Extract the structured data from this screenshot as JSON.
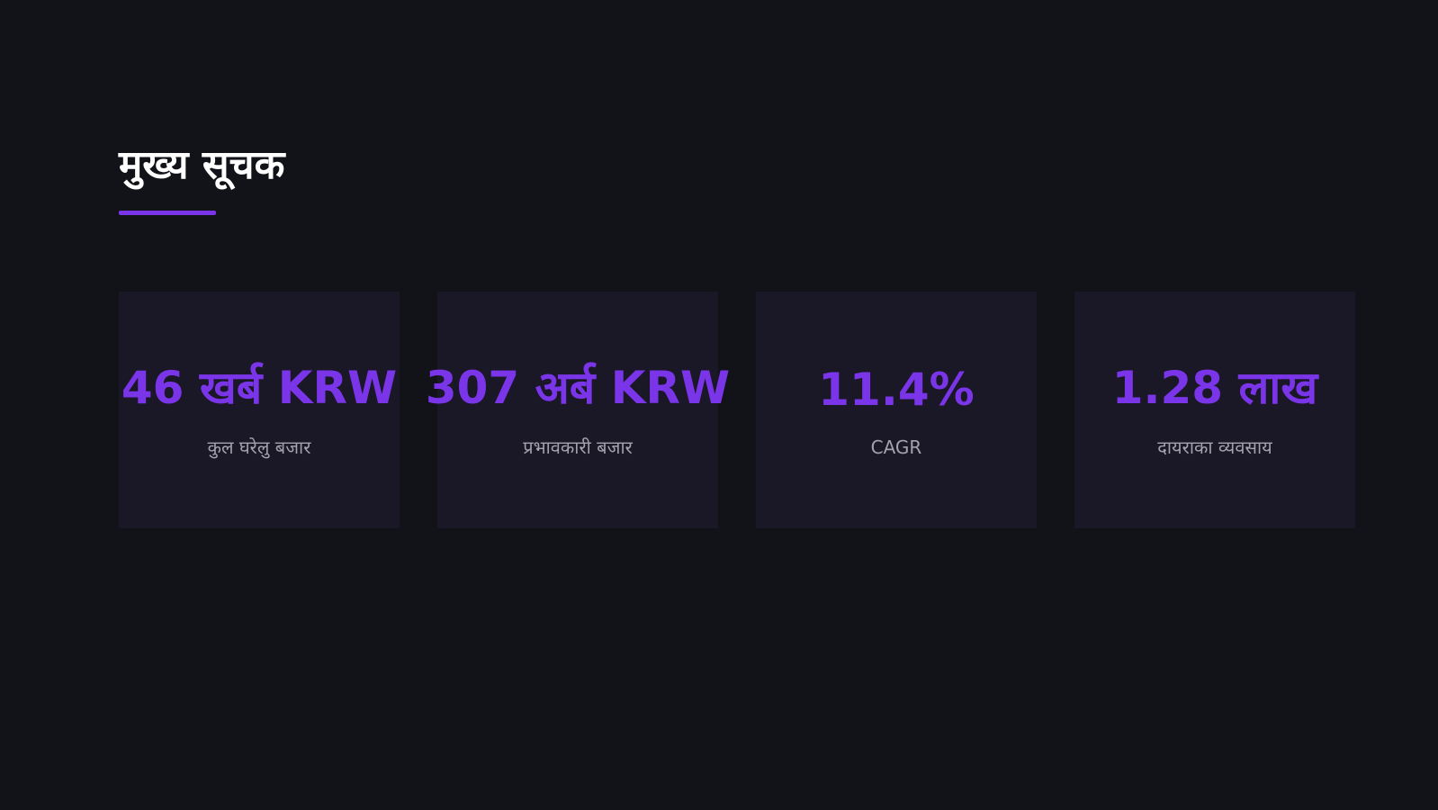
{
  "header": {
    "title": "मुख्य सूचक"
  },
  "cards": [
    {
      "value": "46 खर्ब KRW",
      "label": "कुल घरेलु बजार"
    },
    {
      "value": "307 अर्ब KRW",
      "label": "प्रभावकारी बजार"
    },
    {
      "value": "11.4%",
      "label": "CAGR"
    },
    {
      "value": "1.28 लाख",
      "label": "दायराका व्यवसाय"
    }
  ]
}
